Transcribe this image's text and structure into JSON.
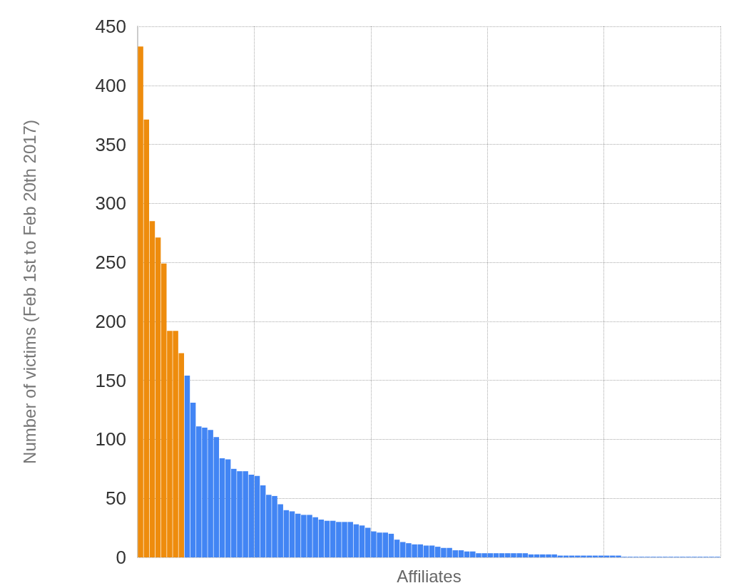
{
  "chart_data": {
    "type": "bar",
    "xlabel": "Affiliates",
    "ylabel": "Number of victims (Feb 1st to Feb 20th 2017)",
    "categories": [
      null,
      null,
      null,
      null,
      null,
      null,
      null,
      null,
      null,
      null,
      null,
      null,
      null,
      null,
      null,
      null,
      null,
      null,
      null,
      null,
      null,
      null,
      null,
      null,
      null,
      null,
      null,
      null,
      null,
      null,
      null,
      null,
      null,
      null,
      null,
      null,
      null,
      null,
      null,
      null,
      null,
      null,
      null,
      null,
      null,
      null,
      null,
      null,
      null,
      null,
      null,
      null,
      null,
      null,
      null,
      null,
      null,
      null,
      null,
      null,
      null,
      null,
      null,
      null,
      null,
      null,
      null,
      null,
      null,
      null,
      null,
      null,
      null,
      null,
      null,
      null,
      null,
      null,
      null,
      null,
      null,
      null,
      null,
      null,
      null,
      null,
      null,
      null,
      null,
      null,
      null,
      null,
      null,
      null,
      null,
      null,
      null,
      null,
      null,
      null
    ],
    "values": [
      433,
      371,
      285,
      271,
      249,
      192,
      192,
      173,
      154,
      131,
      111,
      110,
      108,
      102,
      84,
      83,
      75,
      73,
      73,
      70,
      69,
      61,
      53,
      52,
      45,
      40,
      39,
      37,
      36,
      36,
      34,
      32,
      31,
      31,
      30,
      30,
      30,
      28,
      27,
      25,
      22,
      21,
      21,
      20,
      15,
      13,
      12,
      11,
      11,
      10,
      10,
      9,
      8,
      8,
      6,
      6,
      5,
      5,
      3.5,
      3.5,
      3.5,
      3.5,
      3.5,
      3.5,
      3.5,
      3.5,
      3.5,
      2.5,
      2.5,
      2.5,
      2.5,
      2.5,
      1.5,
      1.5,
      1.5,
      1.5,
      1.5,
      1.5,
      1.5,
      1.5,
      1.5,
      1.5,
      1.5,
      0.5,
      0.5,
      0.5,
      0.5,
      0.5,
      0.5,
      0.5,
      0.5,
      0.5,
      0.5,
      0.5,
      0.5,
      0.5,
      0.5,
      0.5,
      0.5,
      0.5
    ],
    "colors": [
      "#ee8c0d",
      "#ee8c0d",
      "#ee8c0d",
      "#ee8c0d",
      "#ee8c0d",
      "#ee8c0d",
      "#ee8c0d",
      "#ee8c0d",
      "#4285f4",
      "#4285f4",
      "#4285f4",
      "#4285f4",
      "#4285f4",
      "#4285f4",
      "#4285f4",
      "#4285f4",
      "#4285f4",
      "#4285f4",
      "#4285f4",
      "#4285f4",
      "#4285f4",
      "#4285f4",
      "#4285f4",
      "#4285f4",
      "#4285f4",
      "#4285f4",
      "#4285f4",
      "#4285f4",
      "#4285f4",
      "#4285f4",
      "#4285f4",
      "#4285f4",
      "#4285f4",
      "#4285f4",
      "#4285f4",
      "#4285f4",
      "#4285f4",
      "#4285f4",
      "#4285f4",
      "#4285f4",
      "#4285f4",
      "#4285f4",
      "#4285f4",
      "#4285f4",
      "#4285f4",
      "#4285f4",
      "#4285f4",
      "#4285f4",
      "#4285f4",
      "#4285f4",
      "#4285f4",
      "#4285f4",
      "#4285f4",
      "#4285f4",
      "#4285f4",
      "#4285f4",
      "#4285f4",
      "#4285f4",
      "#4285f4",
      "#4285f4",
      "#4285f4",
      "#4285f4",
      "#4285f4",
      "#4285f4",
      "#4285f4",
      "#4285f4",
      "#4285f4",
      "#4285f4",
      "#4285f4",
      "#4285f4",
      "#4285f4",
      "#4285f4",
      "#4285f4",
      "#4285f4",
      "#4285f4",
      "#4285f4",
      "#4285f4",
      "#4285f4",
      "#4285f4",
      "#4285f4",
      "#4285f4",
      "#4285f4",
      "#4285f4",
      "#4285f4",
      "#4285f4",
      "#4285f4",
      "#4285f4",
      "#4285f4",
      "#4285f4",
      "#4285f4",
      "#4285f4",
      "#4285f4",
      "#4285f4",
      "#4285f4",
      "#4285f4",
      "#4285f4",
      "#4285f4",
      "#4285f4",
      "#4285f4",
      "#4285f4"
    ],
    "ylim": [
      0,
      450
    ],
    "yticks": [
      0,
      50,
      100,
      150,
      200,
      250,
      300,
      350,
      400,
      450
    ],
    "grid": true
  }
}
